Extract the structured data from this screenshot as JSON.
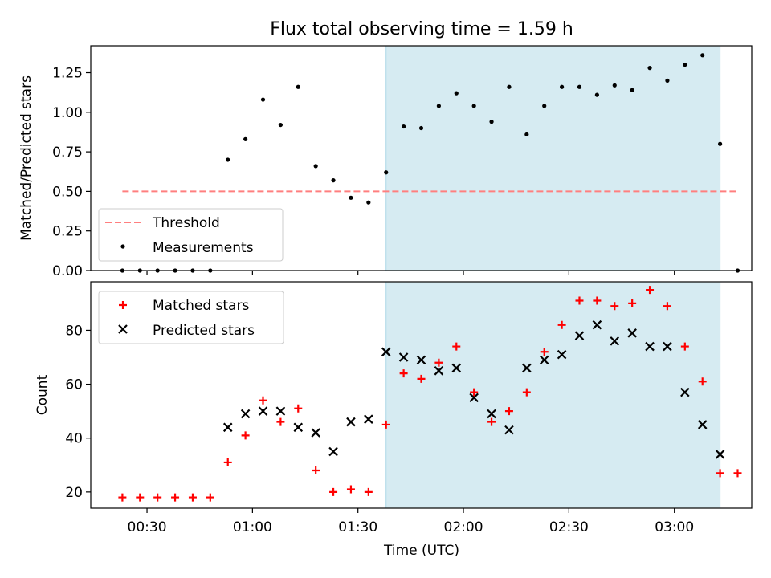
{
  "chart_data": [
    {
      "type": "scatter",
      "title": "Flux total observing time = 1.59 h",
      "xlabel": "",
      "ylabel": "Matched/Predicted stars",
      "ylim": [
        0,
        1.42
      ],
      "xlim": [
        "00:14",
        "03:22"
      ],
      "yticks": [
        0.0,
        0.25,
        0.5,
        0.75,
        1.0,
        1.25
      ],
      "ytick_labels": [
        "0.00",
        "0.25",
        "0.50",
        "0.75",
        "1.00",
        "1.25"
      ],
      "grid": false,
      "legend_position": "lower-left",
      "shaded_region": {
        "start": "01:38",
        "end": "03:13",
        "color": "#add8e6"
      },
      "threshold": {
        "name": "Threshold",
        "y": 0.5,
        "x_start": "00:23",
        "x_end": "03:18",
        "color": "#ff7f7f"
      },
      "series": [
        {
          "name": "Measurements",
          "color": "#000000",
          "x": [
            "00:23",
            "00:28",
            "00:33",
            "00:38",
            "00:43",
            "00:48",
            "00:53",
            "00:58",
            "01:03",
            "01:08",
            "01:13",
            "01:18",
            "01:23",
            "01:28",
            "01:33",
            "01:38",
            "01:43",
            "01:48",
            "01:53",
            "01:58",
            "02:03",
            "02:08",
            "02:13",
            "02:18",
            "02:23",
            "02:28",
            "02:33",
            "02:38",
            "02:43",
            "02:48",
            "02:53",
            "02:58",
            "03:03",
            "03:08",
            "03:13",
            "03:18"
          ],
          "y": [
            0.0,
            0.0,
            0.0,
            0.0,
            0.0,
            0.0,
            0.7,
            0.83,
            1.08,
            0.92,
            1.16,
            0.66,
            0.57,
            0.46,
            0.43,
            0.62,
            0.91,
            0.9,
            1.04,
            1.12,
            1.04,
            0.94,
            1.16,
            0.86,
            1.04,
            1.16,
            1.16,
            1.11,
            1.17,
            1.14,
            1.28,
            1.2,
            1.3,
            1.36,
            0.8,
            0.0
          ]
        }
      ]
    },
    {
      "type": "scatter",
      "xlabel": "Time (UTC)",
      "ylabel": "Count",
      "ylim": [
        14,
        98
      ],
      "xlim": [
        "00:14",
        "03:22"
      ],
      "yticks": [
        20,
        40,
        60,
        80
      ],
      "ytick_labels": [
        "20",
        "40",
        "60",
        "80"
      ],
      "xticks": [
        "00:30",
        "01:00",
        "01:30",
        "02:00",
        "02:30",
        "03:00"
      ],
      "grid": false,
      "legend_position": "upper-left",
      "shaded_region": {
        "start": "01:38",
        "end": "03:13",
        "color": "#add8e6"
      },
      "series": [
        {
          "name": "Matched stars",
          "marker": "+",
          "color": "#ff0000",
          "x": [
            "00:23",
            "00:28",
            "00:33",
            "00:38",
            "00:43",
            "00:48",
            "00:53",
            "00:58",
            "01:03",
            "01:08",
            "01:13",
            "01:18",
            "01:23",
            "01:28",
            "01:33",
            "01:38",
            "01:43",
            "01:48",
            "01:53",
            "01:58",
            "02:03",
            "02:08",
            "02:13",
            "02:18",
            "02:23",
            "02:28",
            "02:33",
            "02:38",
            "02:43",
            "02:48",
            "02:53",
            "02:58",
            "03:03",
            "03:08",
            "03:13",
            "03:18"
          ],
          "y": [
            18,
            18,
            18,
            18,
            18,
            18,
            31,
            41,
            54,
            46,
            51,
            28,
            20,
            21,
            20,
            45,
            64,
            62,
            68,
            74,
            57,
            46,
            50,
            57,
            72,
            82,
            91,
            91,
            89,
            90,
            95,
            89,
            74,
            61,
            27,
            27
          ]
        },
        {
          "name": "Predicted stars",
          "marker": "x",
          "color": "#000000",
          "x": [
            "00:53",
            "00:58",
            "01:03",
            "01:08",
            "01:13",
            "01:18",
            "01:23",
            "01:28",
            "01:33",
            "01:38",
            "01:43",
            "01:48",
            "01:53",
            "01:58",
            "02:03",
            "02:08",
            "02:13",
            "02:18",
            "02:23",
            "02:28",
            "02:33",
            "02:38",
            "02:43",
            "02:48",
            "02:53",
            "02:58",
            "03:03",
            "03:08",
            "03:13"
          ],
          "y": [
            44,
            49,
            50,
            50,
            44,
            42,
            35,
            46,
            47,
            72,
            70,
            69,
            65,
            66,
            55,
            49,
            43,
            66,
            69,
            71,
            78,
            82,
            76,
            79,
            74,
            74,
            57,
            45,
            34
          ]
        }
      ]
    }
  ]
}
